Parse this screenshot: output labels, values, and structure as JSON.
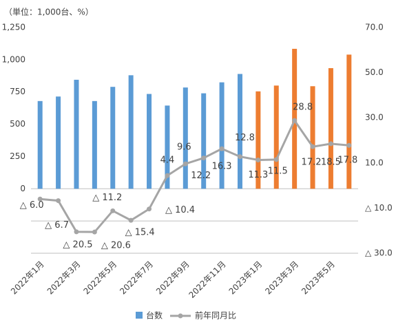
{
  "chart_data": {
    "type": "bar-line",
    "title": "（単位：1,000台、%）",
    "categories": [
      "2022年1月",
      null,
      "2022年3月",
      null,
      "2022年5月",
      null,
      "2022年7月",
      null,
      "2022年9月",
      null,
      "2022年11月",
      null,
      "2023年1月",
      null,
      "2023年3月",
      null,
      "2023年5月",
      null
    ],
    "series": [
      {
        "name": "台数",
        "type": "bar",
        "color": "#5b9bd5",
        "colors": [
          "#5b9bd5",
          "#5b9bd5",
          "#5b9bd5",
          "#5b9bd5",
          "#5b9bd5",
          "#5b9bd5",
          "#5b9bd5",
          "#5b9bd5",
          "#5b9bd5",
          "#5b9bd5",
          "#5b9bd5",
          "#5b9bd5",
          "#ed7d31",
          "#ed7d31",
          "#ed7d31",
          "#ed7d31",
          "#ed7d31",
          "#ed7d31"
        ],
        "values": [
          680,
          715,
          845,
          680,
          790,
          880,
          735,
          645,
          785,
          740,
          825,
          890,
          755,
          800,
          1085,
          795,
          935,
          1040
        ]
      },
      {
        "name": "前年同月比",
        "type": "line",
        "axis": "y2",
        "color": "#a5a5a5",
        "values": [
          -6.0,
          -6.7,
          -20.5,
          -20.6,
          -11.2,
          -15.4,
          -10.4,
          4.4,
          9.6,
          12.2,
          16.3,
          12.8,
          11.3,
          11.5,
          28.8,
          17.2,
          18.5,
          17.8
        ],
        "value_labels": [
          "△ 6.0",
          "△ 6.7",
          "△ 20.5",
          "△ 20.6",
          "△ 11.2",
          "△ 15.4",
          "△ 10.4",
          "4.4",
          "9.6",
          "12.2",
          "16.3",
          "12.8",
          "11.3",
          "11.5",
          "28.8",
          "17.2",
          "18.5",
          "17.8"
        ]
      }
    ],
    "ylim": [
      -500,
      1250
    ],
    "yticks": [
      0,
      250,
      500,
      750,
      {
        "value": 1000,
        "label": "1,000"
      },
      {
        "value": 1250,
        "label": "1,250"
      }
    ],
    "y2lim": [
      -30,
      70
    ],
    "y2ticks": [
      {
        "value": 70,
        "label": "70.0"
      },
      {
        "value": 50,
        "label": "50.0"
      },
      {
        "value": 30,
        "label": "30.0"
      },
      {
        "value": 10,
        "label": "10.0"
      },
      {
        "value": -10,
        "label": "△ 10.0"
      },
      {
        "value": -30,
        "label": "△ 30.0"
      }
    ],
    "ygrid": [
      0,
      -250,
      -500
    ],
    "legend": "bottom"
  }
}
